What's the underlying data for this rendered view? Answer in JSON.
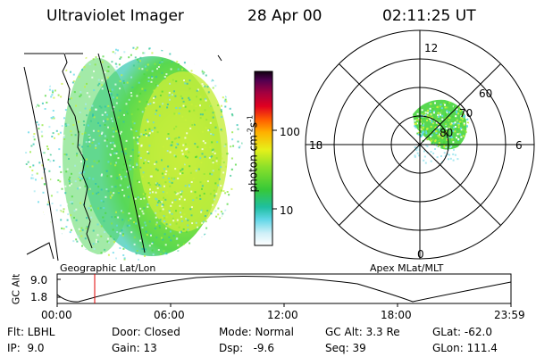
{
  "header": {
    "instrument": "Ultraviolet Imager",
    "date": "28 Apr 00",
    "time": "02:11:25 UT"
  },
  "colorbar": {
    "unit_label": "photon cm",
    "unit_sup1": "-2",
    "unit_mid": "s",
    "unit_sup2": "-1",
    "tick_labels": [
      "100",
      "10"
    ]
  },
  "geo_panel": {
    "caption": "Geographic Lat/Lon"
  },
  "polar_panel": {
    "caption": "Apex MLat/MLT",
    "mlt_labels": [
      "12",
      "18",
      "6",
      "0"
    ],
    "lat_labels": [
      "60",
      "70",
      "80"
    ]
  },
  "altitude_plot": {
    "ylabel": "GC Alt",
    "y_ticks": [
      "9.0",
      "1.8"
    ],
    "x_ticks": [
      "00:00",
      "06:00",
      "12:00",
      "18:00",
      "23:59"
    ],
    "current_marker_color": "#e00000"
  },
  "info": {
    "flt": "Flt: LBHL",
    "ip": "IP:  9.0",
    "door": "Door: Closed",
    "gain": "Gain: 13",
    "mode": "Mode: Normal",
    "dsp": "Dsp:   -9.6",
    "gc_alt": "GC Alt: 3.3 Re",
    "seq": "Seq: 39",
    "glat": "GLat: -62.0",
    "glon": "GLon: 111.4"
  },
  "colors": {
    "aurora_green": "#4cd83a",
    "aurora_yellow": "#c8f03a",
    "speckle_cyan": "#60d8e8"
  }
}
